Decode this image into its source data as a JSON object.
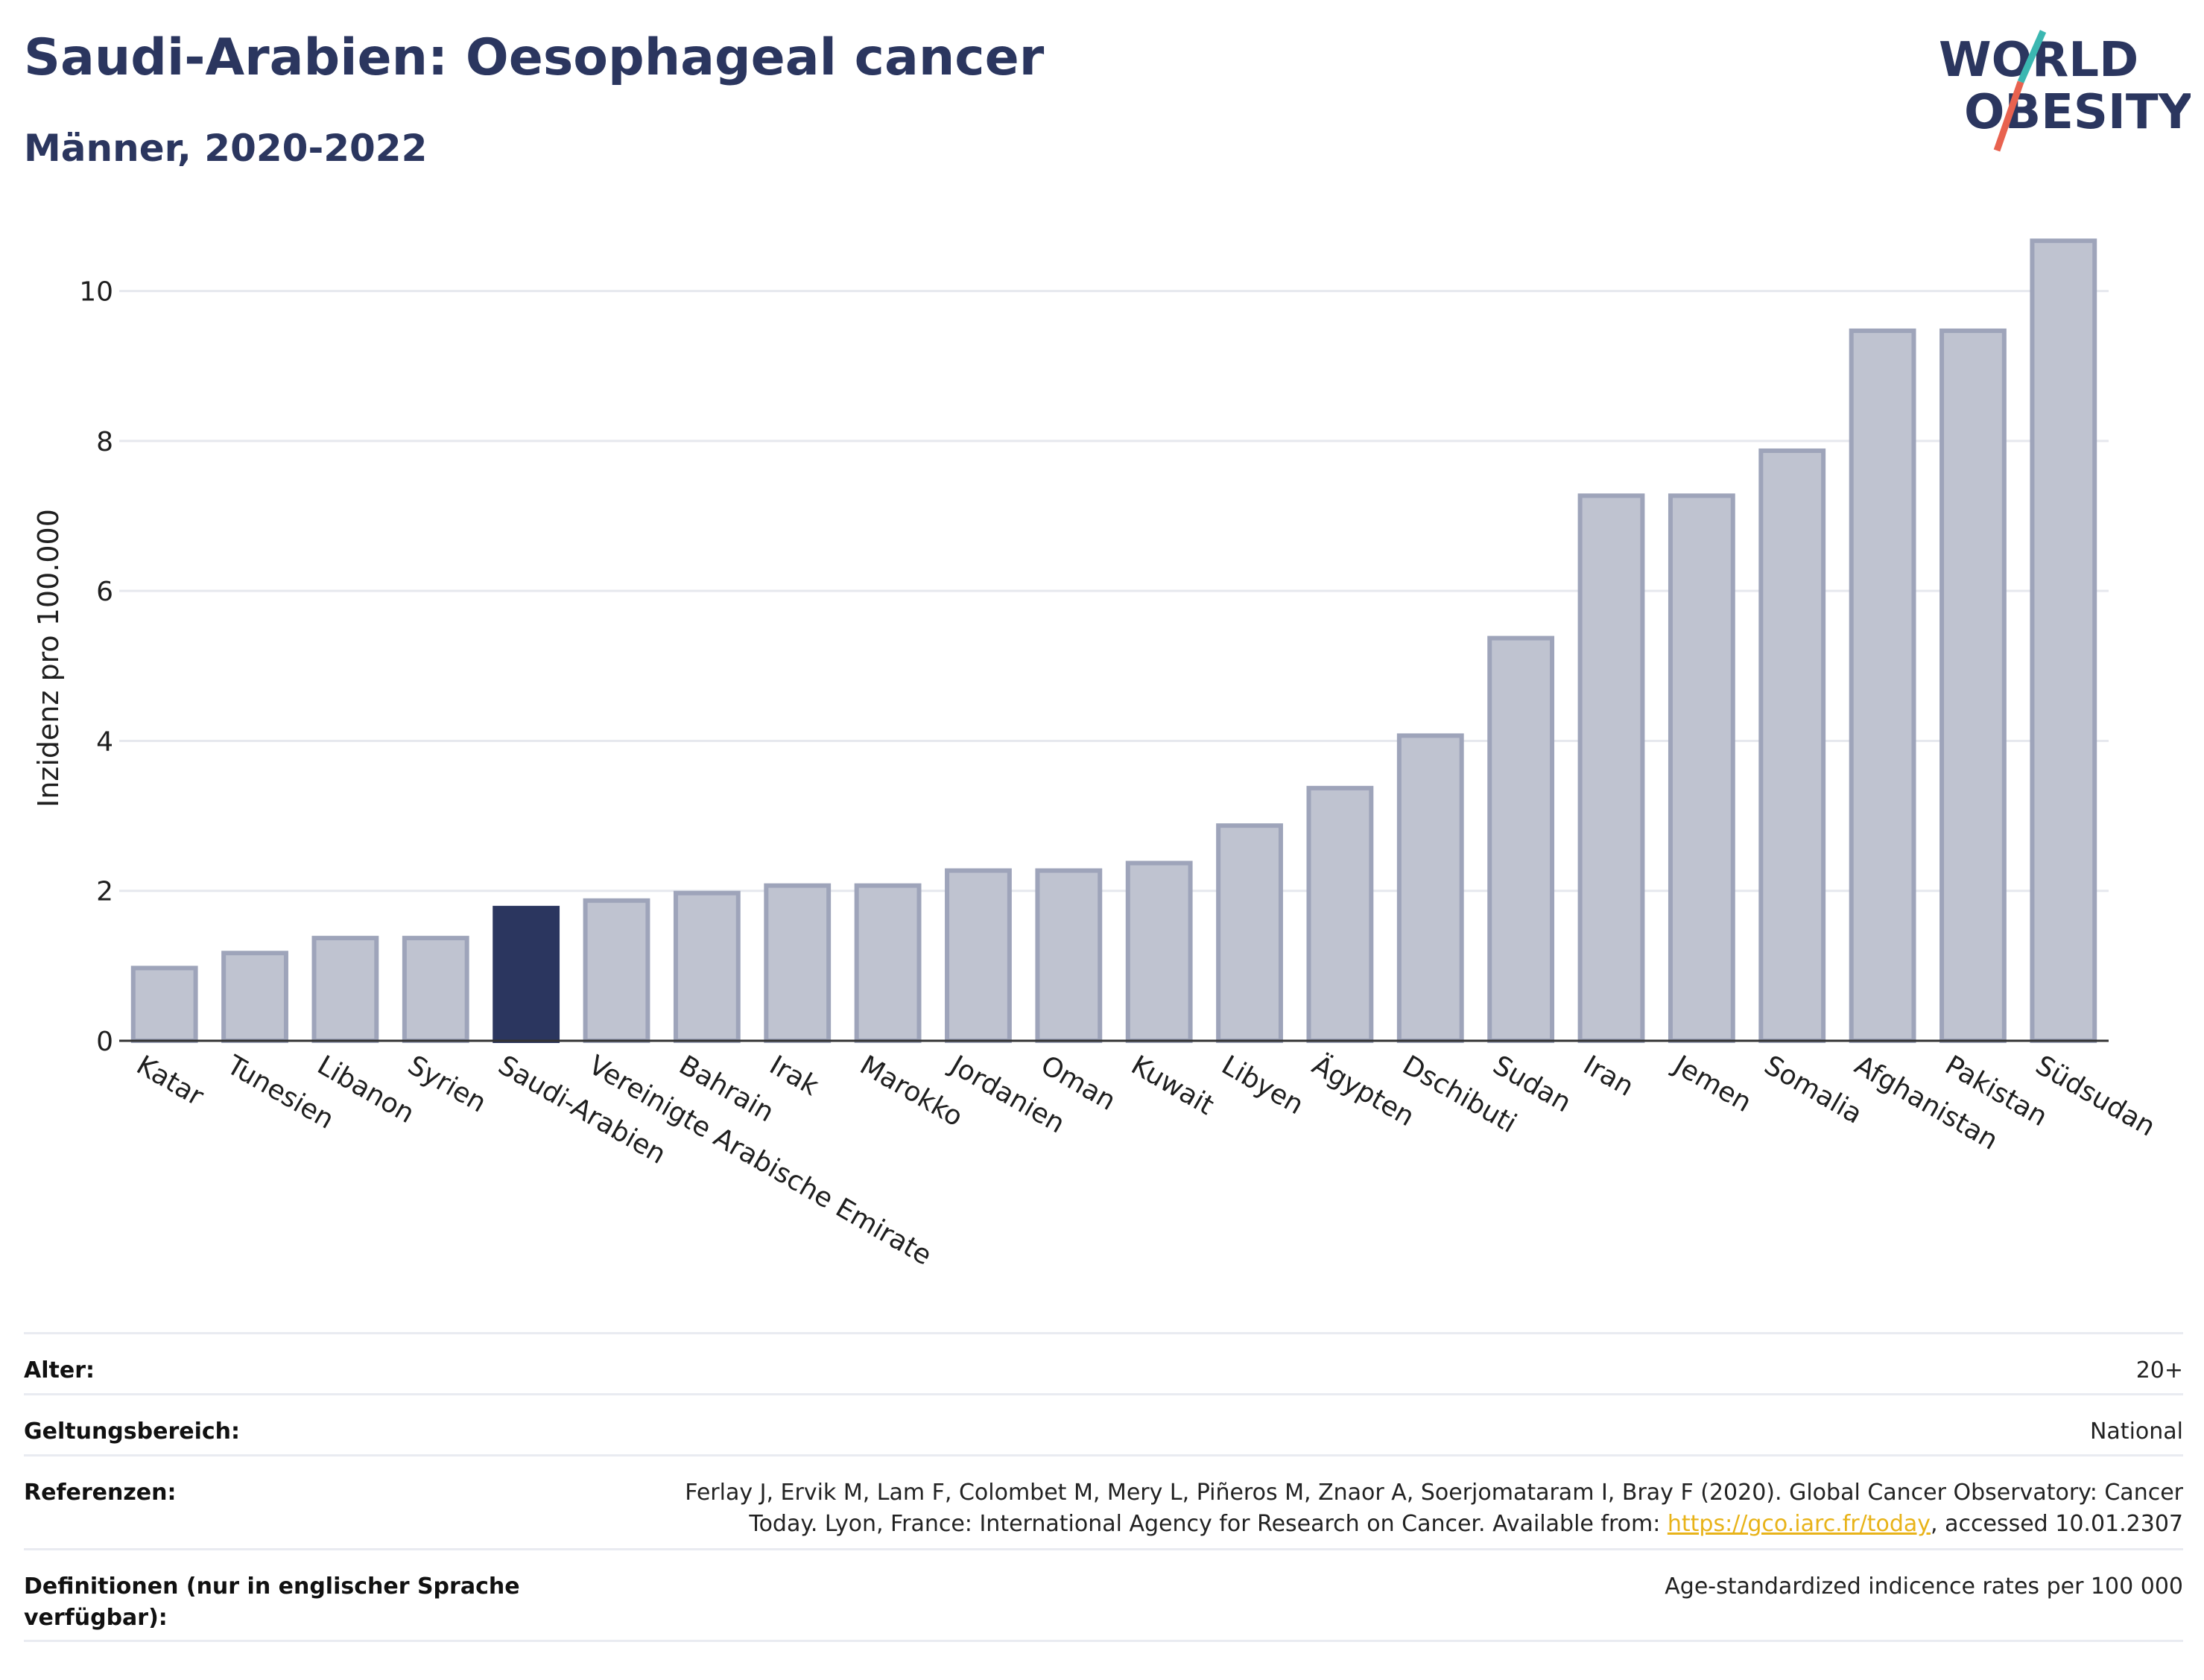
{
  "header": {
    "title": "Saudi-Arabien: Oesophageal cancer",
    "subtitle": "Männer, 2020-2022"
  },
  "logo": {
    "line1": "WORLD",
    "line2": "OBESITY",
    "text_color": "#2b365f",
    "slash_teal": "#3bb7b1",
    "slash_coral": "#e8624f"
  },
  "colors": {
    "bar_default_fill": "#bfc3d0",
    "bar_default_stroke": "#9ea4ba",
    "bar_highlight": "#2b365f",
    "grid": "#e6e8ee",
    "axis": "#333333"
  },
  "chart_data": {
    "type": "bar",
    "ylabel": "Inzidenz pro 100.000",
    "xlabel": "",
    "ylim": [
      0,
      11
    ],
    "yticks": [
      0,
      2,
      4,
      6,
      8,
      10
    ],
    "grid": true,
    "highlight": "Saudi-Arabien",
    "categories": [
      "Katar",
      "Tunesien",
      "Libanon",
      "Syrien",
      "Saudi-Arabien",
      "Vereinigte Arabische Emirate",
      "Bahrain",
      "Irak",
      "Marokko",
      "Jordanien",
      "Oman",
      "Kuwait",
      "Libyen",
      "Ägypten",
      "Dschibuti",
      "Sudan",
      "Iran",
      "Jemen",
      "Somalia",
      "Afghanistan",
      "Pakistan",
      "Südsudan"
    ],
    "values": [
      1.0,
      1.2,
      1.4,
      1.4,
      1.8,
      1.9,
      2.0,
      2.1,
      2.1,
      2.3,
      2.3,
      2.4,
      2.9,
      3.4,
      4.1,
      5.4,
      7.3,
      7.3,
      7.9,
      9.5,
      9.5,
      10.7
    ]
  },
  "meta": {
    "rows": [
      {
        "label": "Alter:",
        "value": "20+"
      },
      {
        "label": "Geltungsbereich:",
        "value": "National"
      },
      {
        "label": "Referenzen:",
        "value_line1": "Ferlay J, Ervik M, Lam F, Colombet M, Mery L, Piñeros M, Znaor A, Soerjomataram I, Bray F (2020). Global Cancer Observatory: Cancer",
        "value_line2_before": "Today. Lyon, France: International Agency for Research on Cancer. Available from: ",
        "link": "https://gco.iarc.fr/today",
        "value_line2_after": ", accessed 10.01.2307"
      },
      {
        "label": "Definitionen (nur in englischer Sprache verfügbar):",
        "value": "Age-standardized indicence rates per 100 000"
      }
    ]
  }
}
